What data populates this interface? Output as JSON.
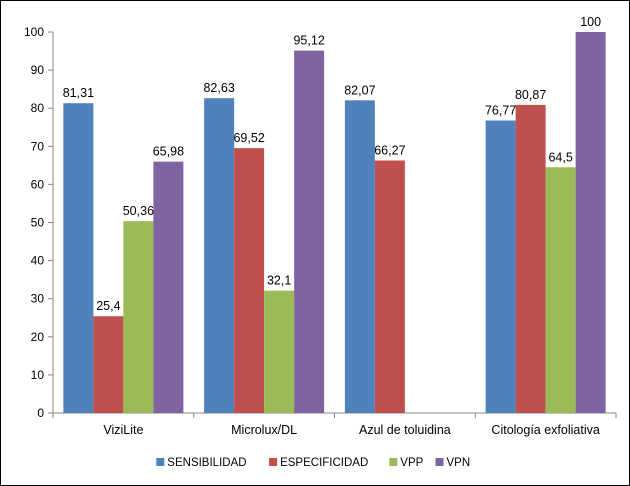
{
  "chart_data": {
    "type": "bar",
    "categories": [
      "ViziLite",
      "Microlux/DL",
      "Azul de toluidina",
      "Citología exfoliativa"
    ],
    "series": [
      {
        "name": "SENSIBILIDAD",
        "color": "#4f81bd",
        "values": [
          81.31,
          82.63,
          82.07,
          76.77
        ],
        "labels": [
          "81,31",
          "82,63",
          "82,07",
          "76,77"
        ]
      },
      {
        "name": "ESPECIFICIDAD",
        "color": "#c0504d",
        "values": [
          25.4,
          69.52,
          66.27,
          80.87
        ],
        "labels": [
          "25,4",
          "69,52",
          "66,27",
          "80,87"
        ]
      },
      {
        "name": "VPP",
        "color": "#9bbb59",
        "values": [
          50.36,
          32.1,
          null,
          64.5
        ],
        "labels": [
          "50,36",
          "32,1",
          "",
          "64,5"
        ]
      },
      {
        "name": "VPN",
        "color": "#8064a2",
        "values": [
          65.98,
          95.12,
          null,
          100
        ],
        "labels": [
          "65,98",
          "95,12",
          "",
          "100"
        ]
      }
    ],
    "ylim": [
      0,
      100
    ],
    "yticks": [
      "0",
      "10",
      "20",
      "30",
      "40",
      "50",
      "60",
      "70",
      "80",
      "90",
      "100"
    ],
    "grid": false,
    "legend_position": "bottom"
  }
}
